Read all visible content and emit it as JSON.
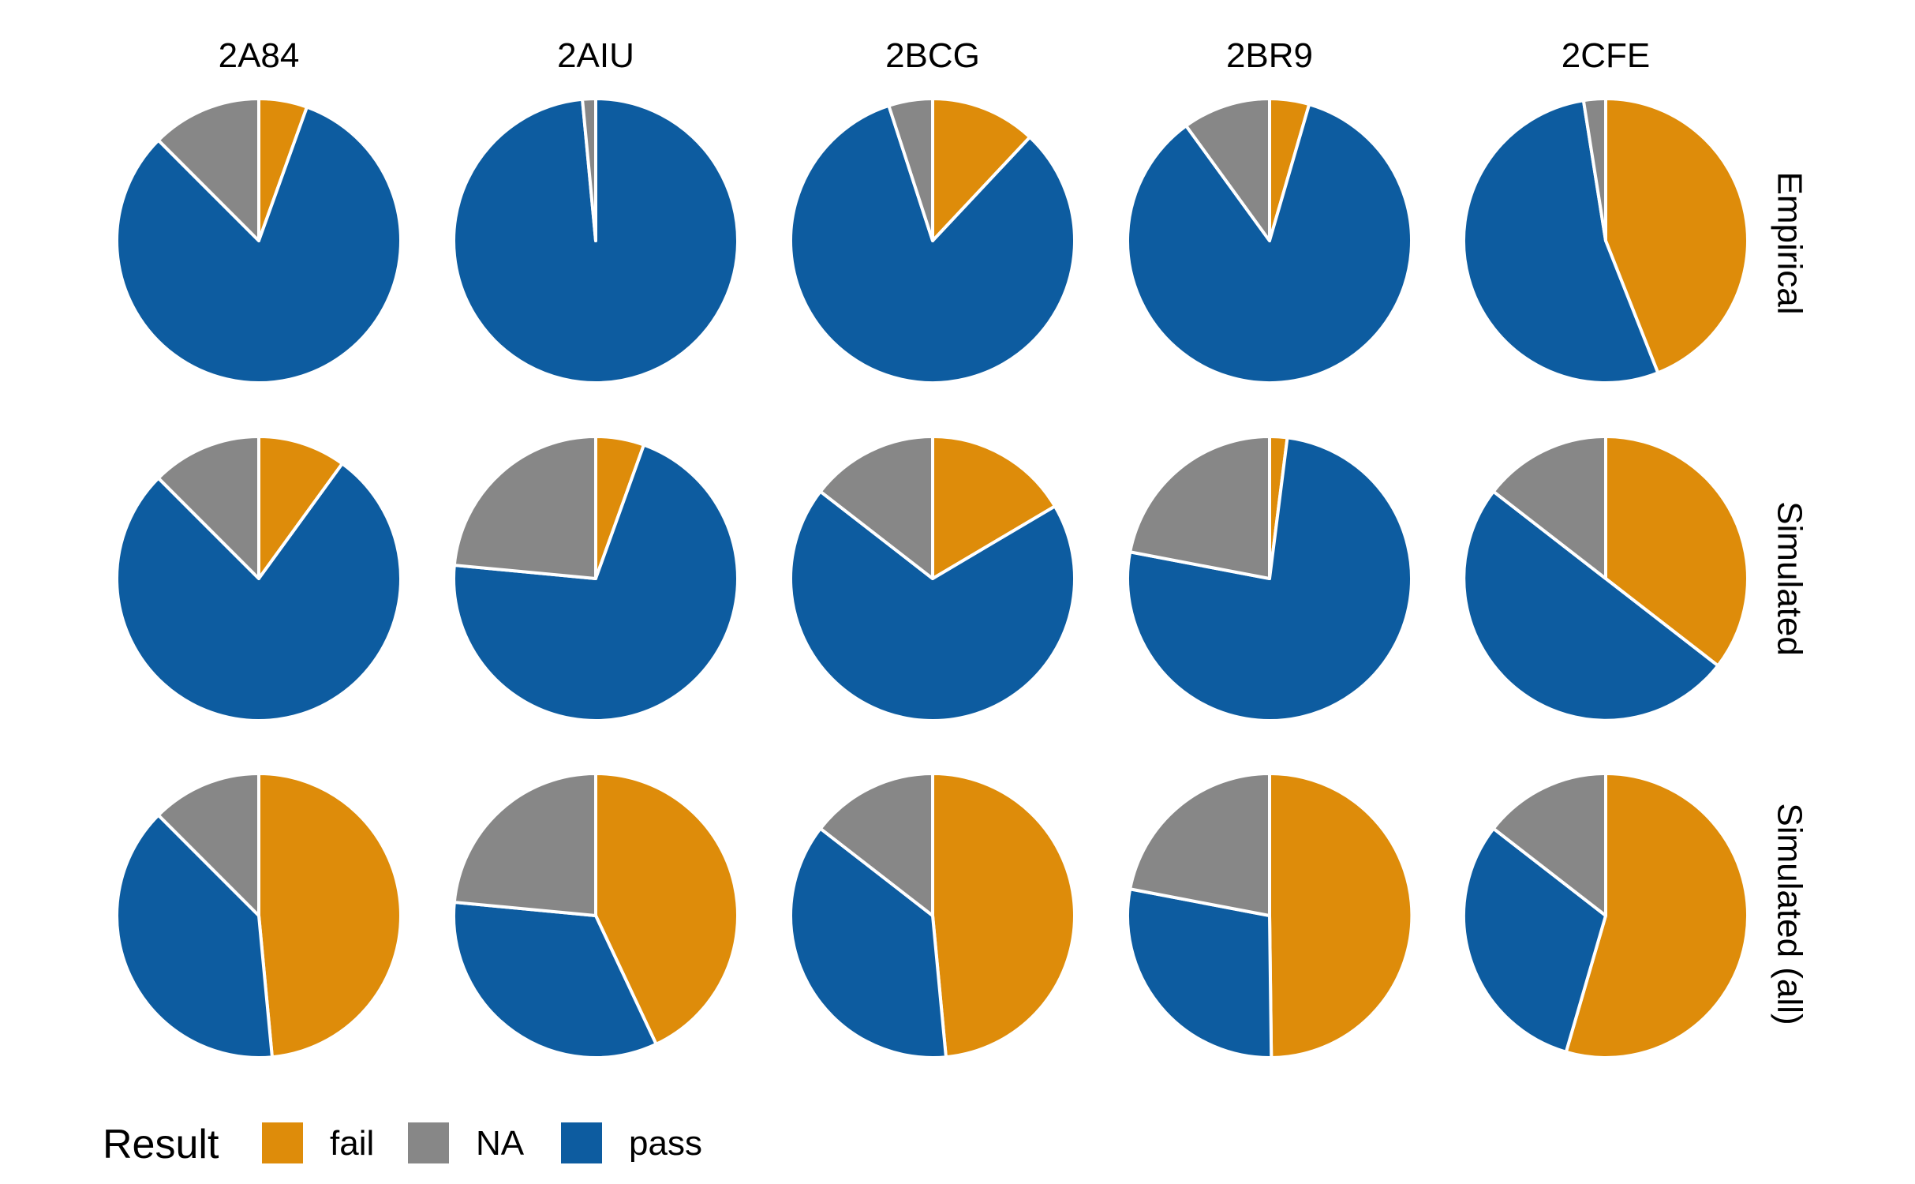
{
  "chart_data": {
    "type": "pie",
    "columns": [
      "2A84",
      "2AIU",
      "2BCG",
      "2BR9",
      "2CFE"
    ],
    "rows": [
      "Empirical",
      "Simulated",
      "Simulated (all)"
    ],
    "legend": {
      "title": "Result",
      "position": "bottom-left",
      "items": [
        {
          "label": "fail",
          "color": "#DE8C0A"
        },
        {
          "label": "NA",
          "color": "#878787"
        },
        {
          "label": "pass",
          "color": "#0D5CA0"
        }
      ]
    },
    "slice_order": [
      "fail",
      "pass",
      "NA"
    ],
    "panels": [
      [
        {
          "fail": 0.055,
          "NA": 0.125,
          "pass": 0.82
        },
        {
          "fail": 0.0,
          "NA": 0.015,
          "pass": 0.985
        },
        {
          "fail": 0.12,
          "NA": 0.05,
          "pass": 0.83
        },
        {
          "fail": 0.045,
          "NA": 0.1,
          "pass": 0.855
        },
        {
          "fail": 0.44,
          "NA": 0.025,
          "pass": 0.535
        }
      ],
      [
        {
          "fail": 0.1,
          "NA": 0.125,
          "pass": 0.775
        },
        {
          "fail": 0.055,
          "NA": 0.235,
          "pass": 0.71
        },
        {
          "fail": 0.165,
          "NA": 0.145,
          "pass": 0.69
        },
        {
          "fail": 0.02,
          "NA": 0.22,
          "pass": 0.76
        },
        {
          "fail": 0.355,
          "NA": 0.145,
          "pass": 0.5
        }
      ],
      [
        {
          "fail": 0.485,
          "NA": 0.125,
          "pass": 0.39
        },
        {
          "fail": 0.43,
          "NA": 0.235,
          "pass": 0.335
        },
        {
          "fail": 0.485,
          "NA": 0.145,
          "pass": 0.37
        },
        {
          "fail": 0.498,
          "NA": 0.22,
          "pass": 0.282
        },
        {
          "fail": 0.545,
          "NA": 0.145,
          "pass": 0.31
        }
      ]
    ]
  }
}
